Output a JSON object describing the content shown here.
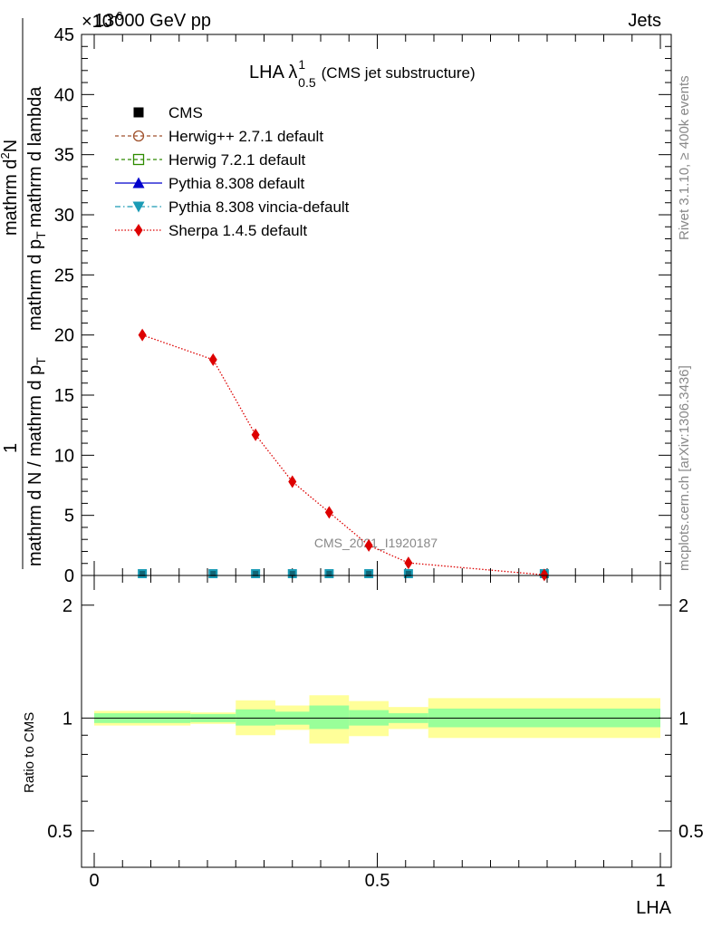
{
  "header": {
    "energy_label": "13000 GeV pp",
    "process_label": "Jets",
    "exponent_label": "×10",
    "exponent_sup": "-6"
  },
  "side": {
    "rivet_label": "Rivet 3.1.10, ≥ 400k events",
    "mcplots_label": "mcplots.cern.ch [arXiv:1306.3436]"
  },
  "chart_data": [
    {
      "type": "line",
      "title_main": "LHA λ",
      "title_sup": "1",
      "title_sub": "0.5",
      "title_suffix": "(CMS jet substructure)",
      "watermark": "CMS_2021_I1920187",
      "ylabel_numerator_top": "1",
      "ylabel_denominator_top": "mathrm d N / mathrm d p",
      "ylabel_denominator_sub": "T",
      "ylabel_numerator_main": "mathrm d",
      "ylabel_numerator_sup": "2",
      "ylabel_numerator_rest": "N",
      "ylabel_denominator_main": "mathrm d p",
      "ylabel_denominator_main_sub": "T",
      "ylabel_denominator_rest": "mathrm d lambda",
      "xlim": [
        0,
        1
      ],
      "ylim": [
        0,
        45
      ],
      "yticks": [
        0,
        5,
        10,
        15,
        20,
        25,
        30,
        35,
        40,
        45
      ],
      "legend": [
        {
          "name": "CMS",
          "color": "#000000",
          "marker": "square-filled",
          "style": "none"
        },
        {
          "name": "Herwig++ 2.7.1 default",
          "color": "#a0522d",
          "marker": "circle-open",
          "style": "dashed"
        },
        {
          "name": "Herwig 7.2.1 default",
          "color": "#2e8b00",
          "marker": "square-open",
          "style": "dashed"
        },
        {
          "name": "Pythia 8.308 default",
          "color": "#0000cc",
          "marker": "triangle-up",
          "style": "solid"
        },
        {
          "name": "Pythia 8.308 vincia-default",
          "color": "#1a9bb5",
          "marker": "triangle-down",
          "style": "dashdot"
        },
        {
          "name": "Sherpa 1.4.5 default",
          "color": "#dd0000",
          "marker": "diamond",
          "style": "dotted"
        }
      ],
      "x": [
        0.085,
        0.21,
        0.285,
        0.35,
        0.415,
        0.485,
        0.555,
        0.795
      ],
      "series": [
        {
          "name": "Sherpa 1.4.5 default",
          "values": [
            20.0,
            17.95,
            11.7,
            7.8,
            5.25,
            2.5,
            1.05,
            0.05
          ]
        },
        {
          "name": "CMS",
          "values": [
            0.15,
            0.15,
            0.15,
            0.15,
            0.15,
            0.15,
            0.15,
            0.15
          ]
        }
      ]
    },
    {
      "type": "area",
      "ylabel": "Ratio to CMS",
      "xlabel": "LHA",
      "xlim": [
        0,
        1
      ],
      "ylim": [
        0.4,
        2.4
      ],
      "yticks": [
        0.5,
        1,
        2
      ],
      "ytick_labels": [
        "0.5",
        "1",
        "2"
      ],
      "xticks": [
        0,
        0.5,
        1
      ],
      "xtick_labels": [
        "0",
        "0.5",
        "1"
      ],
      "bins": [
        {
          "lo": 0.0,
          "hi": 0.17,
          "inner": [
            0.97,
            1.03
          ],
          "outer": [
            0.955,
            1.045
          ]
        },
        {
          "lo": 0.17,
          "hi": 0.25,
          "inner": [
            0.975,
            1.025
          ],
          "outer": [
            0.965,
            1.035
          ]
        },
        {
          "lo": 0.25,
          "hi": 0.32,
          "inner": [
            0.955,
            1.055
          ],
          "outer": [
            0.9,
            1.115
          ]
        },
        {
          "lo": 0.32,
          "hi": 0.38,
          "inner": [
            0.96,
            1.04
          ],
          "outer": [
            0.93,
            1.08
          ]
        },
        {
          "lo": 0.38,
          "hi": 0.45,
          "inner": [
            0.935,
            1.08
          ],
          "outer": [
            0.855,
            1.15
          ]
        },
        {
          "lo": 0.45,
          "hi": 0.52,
          "inner": [
            0.955,
            1.05
          ],
          "outer": [
            0.895,
            1.11
          ]
        },
        {
          "lo": 0.52,
          "hi": 0.59,
          "inner": [
            0.97,
            1.03
          ],
          "outer": [
            0.935,
            1.07
          ]
        },
        {
          "lo": 0.59,
          "hi": 1.0,
          "inner": [
            0.945,
            1.06
          ],
          "outer": [
            0.885,
            1.13
          ]
        }
      ],
      "inner_color": "#99ff99",
      "outer_color": "#ffff99"
    }
  ]
}
